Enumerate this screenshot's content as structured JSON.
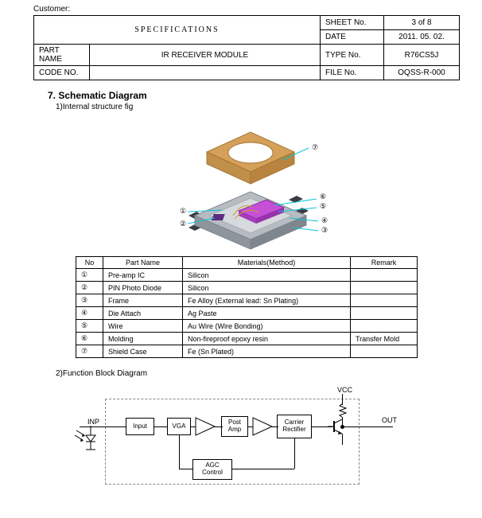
{
  "customer_label": "Customer:",
  "header": {
    "title": "SPECIFICATIONS",
    "part_name_label": "PART NAME",
    "part_name_value": "IR RECEIVER MODULE",
    "code_no_label": "CODE NO.",
    "code_no_value": "",
    "rows": [
      {
        "label": "SHEET No.",
        "value": "3 of 8"
      },
      {
        "label": "DATE",
        "value": "2011. 05. 02."
      },
      {
        "label": "TYPE No.",
        "value": "R76CS5J"
      },
      {
        "label": "FILE No.",
        "value": "OQSS-R-000"
      }
    ]
  },
  "section": {
    "title": "7. Schematic Diagram",
    "sub1": "1)Internal structure fig",
    "sub2": "2)Function Block Diagram"
  },
  "exploded": {
    "shield_color": "#d4a05a",
    "body_color": "#9aa0a6",
    "chip_color": "#c74fd8",
    "wire_pad": "#c9a227",
    "lead_color": "#08c4d6",
    "pad_color": "#5a5f66",
    "callouts": [
      "①",
      "②",
      "③",
      "④",
      "⑤",
      "⑥",
      "⑦"
    ]
  },
  "parts_table": {
    "headers": [
      "No",
      "Part Name",
      "Materials(Method)",
      "Remark"
    ],
    "rows": [
      [
        "①",
        "Pre-amp IC",
        "Silicon",
        ""
      ],
      [
        "②",
        "PIN Photo Diode",
        "Silicon",
        ""
      ],
      [
        "③",
        "Frame",
        "Fe Alloy (External lead: Sn Plating)",
        ""
      ],
      [
        "④",
        "Die Attach",
        "Ag Paste",
        ""
      ],
      [
        "⑤",
        "Wire",
        "Au Wire (Wire Bonding)",
        ""
      ],
      [
        "⑥",
        "Molding",
        "Non-fireproof epoxy resin",
        "Transfer Mold"
      ],
      [
        "⑦",
        "Shield Case",
        "Fe (Sn Plated)",
        ""
      ]
    ]
  },
  "block_diagram": {
    "labels": {
      "inp": "INP",
      "vcc": "VCC",
      "out": "OUT"
    },
    "blocks": {
      "input": "Input",
      "vga": "VGA",
      "postamp": "Post\nAmp",
      "rectifier": "Carrier\nRectifier",
      "agc": "AGC\nControl"
    },
    "colors": {
      "line": "#000000",
      "dash": "#888888",
      "bg": "#ffffff"
    }
  }
}
